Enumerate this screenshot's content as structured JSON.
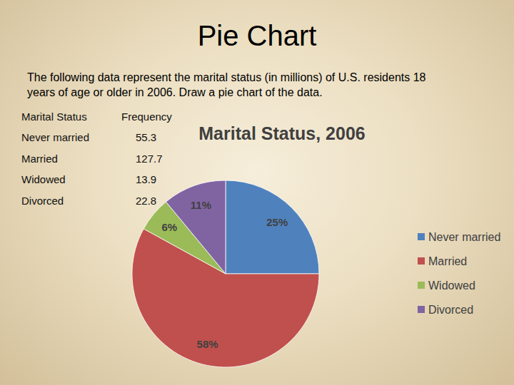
{
  "slide": {
    "title": "Pie Chart",
    "text": [
      "The following data represent the marital status (in millions) of U.S. residents 18",
      "years of age or older in 2006.  Draw a pie chart of the data."
    ],
    "table": {
      "header": [
        "Marital Status",
        "Frequency"
      ],
      "rows": [
        [
          "Never married",
          55.3
        ],
        [
          "Married",
          127.7
        ],
        [
          "Widowed",
          13.9
        ],
        [
          "Divorced",
          22.8
        ]
      ]
    }
  },
  "chart_data": {
    "type": "pie",
    "title": "Marital Status, 2006",
    "categories": [
      "Never married",
      "Married",
      "Widowed",
      "Divorced"
    ],
    "values": [
      25,
      58,
      6,
      11
    ],
    "value_labels": [
      "25%",
      "58%",
      "6%",
      "11%"
    ],
    "colors": [
      "#4f81bd",
      "#c0504d",
      "#9bbb59",
      "#8064a2"
    ],
    "data_labels": true,
    "legend": "right"
  }
}
